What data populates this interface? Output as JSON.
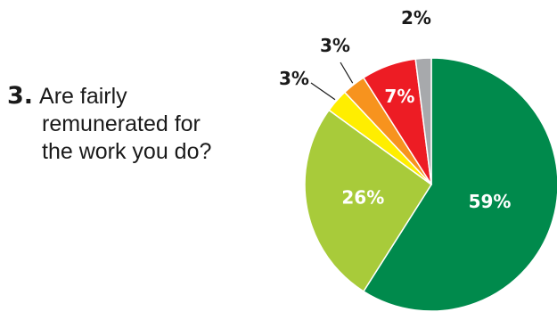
{
  "question": {
    "number": "3.",
    "lines": [
      "Are fairly",
      "remunerated for",
      "the work you do?"
    ]
  },
  "chart_data": {
    "type": "pie",
    "title": "",
    "start": "12 o'clock, clockwise",
    "slices": [
      {
        "label": "59%",
        "value": 59,
        "color": "#008a4c"
      },
      {
        "label": "26%",
        "value": 26,
        "color": "#a8cb3a"
      },
      {
        "label": "3%",
        "value": 3,
        "color": "#ffee00"
      },
      {
        "label": "3%",
        "value": 3,
        "color": "#f7931e"
      },
      {
        "label": "7%",
        "value": 7,
        "color": "#ed1c24"
      },
      {
        "label": "2%",
        "value": 2,
        "color": "#a7a9ac"
      }
    ]
  }
}
